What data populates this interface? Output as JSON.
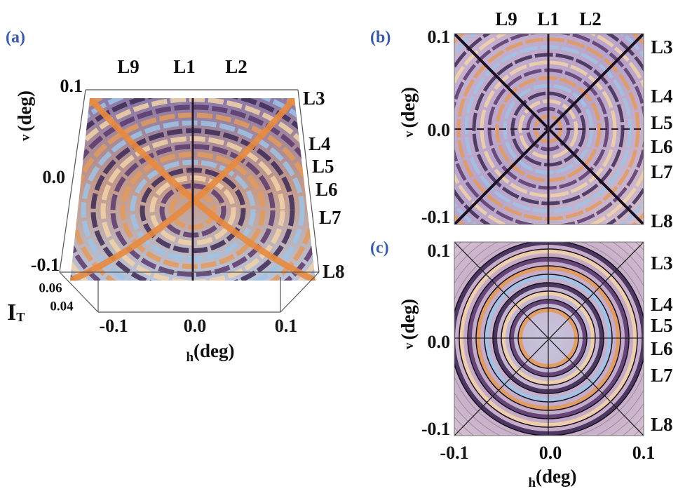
{
  "panels": [
    {
      "label": "(a)",
      "top_labels": [
        "L9",
        "L1",
        "L2"
      ],
      "right_labels": [
        "L3",
        "L4",
        "L5",
        "L6",
        "L7",
        "L8"
      ],
      "y_axis": {
        "title": "v",
        "unit": "(deg)",
        "ticks": [
          "0.1",
          "0.0",
          "-0.1"
        ]
      },
      "z_axis": {
        "title": "I",
        "subscript": "T",
        "ticks": [
          "0.06",
          "0.04"
        ]
      },
      "x_axis": {
        "title": "h",
        "unit": "(deg)",
        "ticks": [
          "-0.1",
          "0.0",
          "0.1"
        ]
      }
    },
    {
      "label": "(b)",
      "top_labels": [
        "L9",
        "L1",
        "L2"
      ],
      "right_labels": [
        "L3",
        "L4",
        "L5",
        "L6",
        "L7",
        "L8"
      ],
      "y_axis": {
        "title": "v",
        "unit": "(deg)",
        "ticks": [
          "0.1",
          "0.0",
          "-0.1"
        ]
      }
    },
    {
      "label": "(c)",
      "right_labels": [
        "L3",
        "L4",
        "L5",
        "L6",
        "L7",
        "L8"
      ],
      "y_axis": {
        "title": "v",
        "unit": "(deg)",
        "ticks": [
          "0.1",
          "0.0",
          "-0.1"
        ]
      },
      "x_axis": {
        "title": "h",
        "unit": "(deg)",
        "ticks": [
          "-0.1",
          "0.0",
          "0.1"
        ]
      }
    }
  ]
}
